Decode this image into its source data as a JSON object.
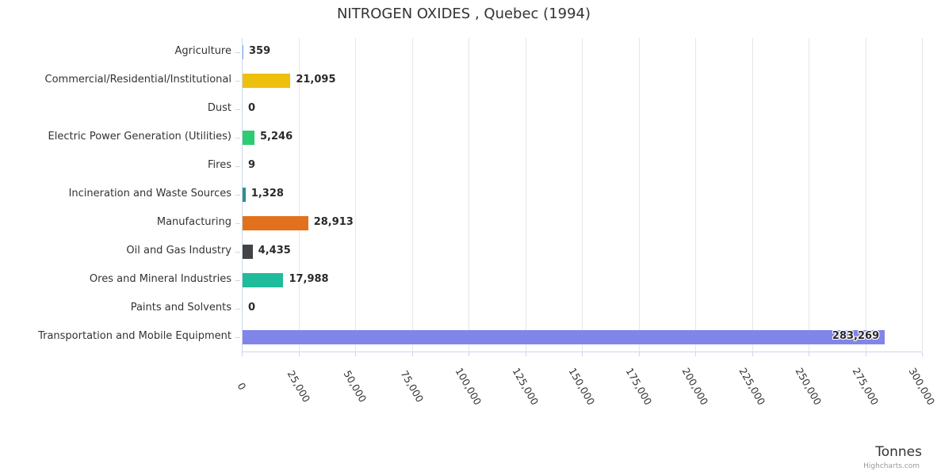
{
  "title": "NITROGEN OXIDES , Quebec (1994)",
  "xaxis_title": "Tonnes",
  "credits": "Highcharts.com",
  "chart_data": {
    "type": "bar",
    "orientation": "horizontal",
    "title": "NITROGEN OXIDES , Quebec (1994)",
    "xlabel": "Tonnes",
    "ylabel": "",
    "xlim": [
      0,
      300000
    ],
    "grid": true,
    "legend": false,
    "categories": [
      "Agriculture",
      "Commercial/Residential/Institutional",
      "Dust",
      "Electric Power Generation (Utilities)",
      "Fires",
      "Incineration and Waste Sources",
      "Manufacturing",
      "Oil and Gas Industry",
      "Ores and Mineral Industries",
      "Paints and Solvents",
      "Transportation and Mobile Equipment"
    ],
    "values": [
      359,
      21095,
      0,
      5246,
      9,
      1328,
      28913,
      4435,
      17988,
      0,
      283269
    ],
    "value_labels": [
      "359",
      "21,095",
      "0",
      "5,246",
      "9",
      "1,328",
      "28,913",
      "4,435",
      "17,988",
      "0",
      "283,269"
    ],
    "bar_colors": [
      "#7cb5ec",
      "#eec00e",
      "#7cb5ec",
      "#2ecc71",
      "#f15c80",
      "#2b908f",
      "#e2711d",
      "#434348",
      "#1fbc9c",
      "#7cb5ec",
      "#8085e9"
    ],
    "x_tick_values": [
      0,
      25000,
      50000,
      75000,
      100000,
      125000,
      150000,
      175000,
      200000,
      225000,
      250000,
      275000,
      300000
    ],
    "x_tick_labels": [
      "0",
      "25,000",
      "50,000",
      "75,000",
      "100,000",
      "125,000",
      "150,000",
      "175,000",
      "200,000",
      "225,000",
      "250,000",
      "275,000",
      "300,000"
    ]
  },
  "colors": {
    "text": "#333333",
    "grid": "#e6e6e6",
    "axis": "#ccd6eb",
    "value_label": "#2a2a2b",
    "background": "#ffffff"
  }
}
